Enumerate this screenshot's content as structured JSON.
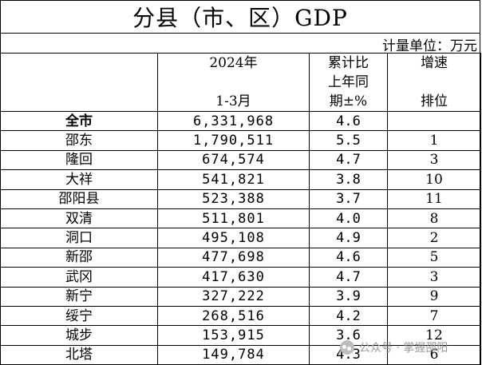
{
  "title": "分县（市、区）GDP",
  "unit": "计量单位：万元",
  "headers": {
    "col2_line1": "2024年",
    "col2_line3": "1-3月",
    "col3_line1": "累计比",
    "col3_line2": "上年同",
    "col3_line3": "期±%",
    "col4_line1": "增速",
    "col4_line3": "排位"
  },
  "rows": [
    {
      "name": "全市",
      "total": "6,331,968",
      "growth": "4.6",
      "rank": ""
    },
    {
      "name": "邵东",
      "total": "1,790,511",
      "growth": "5.5",
      "rank": "1"
    },
    {
      "name": "隆回",
      "total": "674,574",
      "growth": "4.7",
      "rank": "3"
    },
    {
      "name": "大祥",
      "total": "541,821",
      "growth": "3.8",
      "rank": "10"
    },
    {
      "name": "邵阳县",
      "total": "523,388",
      "growth": "3.7",
      "rank": "11"
    },
    {
      "name": "双清",
      "total": "511,801",
      "growth": "4.0",
      "rank": "8"
    },
    {
      "name": "洞口",
      "total": "495,108",
      "growth": "4.9",
      "rank": "2"
    },
    {
      "name": "新邵",
      "total": "477,698",
      "growth": "4.6",
      "rank": "5"
    },
    {
      "name": "武冈",
      "total": "417,630",
      "growth": "4.7",
      "rank": "3"
    },
    {
      "name": "新宁",
      "total": "327,222",
      "growth": "3.9",
      "rank": "9"
    },
    {
      "name": "绥宁",
      "total": "268,516",
      "growth": "4.2",
      "rank": "7"
    },
    {
      "name": "城步",
      "total": "153,915",
      "growth": "3.6",
      "rank": "12"
    },
    {
      "name": "北塔",
      "total": "149,784",
      "growth": "4.3",
      "rank": "6"
    }
  ],
  "watermark": {
    "icon": "wechat-icon",
    "text": "公众号 · 掌握邵阳"
  }
}
